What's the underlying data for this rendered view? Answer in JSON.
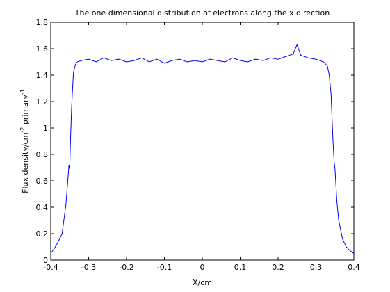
{
  "chart_data": {
    "type": "line",
    "title": "The one dimensional distribution of electrons along the x direction",
    "xlabel": "X/cm",
    "ylabel": {
      "base": "Flux density/cm",
      "sup1": "-2",
      "mid": " primary",
      "sup2": "-1"
    },
    "xlim": [
      -0.4,
      0.4
    ],
    "ylim": [
      0,
      1.8
    ],
    "xticks": [
      -0.4,
      -0.3,
      -0.2,
      -0.1,
      0,
      0.1,
      0.2,
      0.3,
      0.4
    ],
    "xtick_labels": [
      "-0.4",
      "-0.3",
      "-0.2",
      "-0.1",
      "0",
      "0.1",
      "0.2",
      "0.3",
      "0.4"
    ],
    "yticks": [
      0,
      0.2,
      0.4,
      0.6,
      0.8,
      1,
      1.2,
      1.4,
      1.6,
      1.8
    ],
    "ytick_labels": [
      "0",
      "0.2",
      "0.4",
      "0.6",
      "0.8",
      "1",
      "1.2",
      "1.4",
      "1.6",
      "1.8"
    ],
    "grid": false,
    "line_color": "#0000ff",
    "series": [
      {
        "x": [
          -0.4,
          -0.39,
          -0.38,
          -0.37,
          -0.36,
          -0.355,
          -0.352,
          -0.35,
          -0.348,
          -0.345,
          -0.342,
          -0.34,
          -0.335,
          -0.33,
          -0.32,
          -0.3,
          -0.28,
          -0.26,
          -0.24,
          -0.22,
          -0.2,
          -0.18,
          -0.16,
          -0.14,
          -0.12,
          -0.1,
          -0.08,
          -0.06,
          -0.04,
          -0.02,
          0,
          0.02,
          0.04,
          0.06,
          0.08,
          0.1,
          0.12,
          0.14,
          0.16,
          0.18,
          0.2,
          0.22,
          0.24,
          0.25,
          0.26,
          0.28,
          0.3,
          0.32,
          0.33,
          0.335,
          0.34,
          0.342,
          0.345,
          0.348,
          0.35,
          0.352,
          0.355,
          0.36,
          0.37,
          0.38,
          0.39,
          0.4
        ],
        "y": [
          0.05,
          0.09,
          0.14,
          0.2,
          0.42,
          0.6,
          0.72,
          0.69,
          0.9,
          1.15,
          1.32,
          1.42,
          1.48,
          1.5,
          1.51,
          1.52,
          1.5,
          1.53,
          1.51,
          1.52,
          1.5,
          1.51,
          1.53,
          1.5,
          1.52,
          1.49,
          1.51,
          1.52,
          1.5,
          1.51,
          1.5,
          1.52,
          1.51,
          1.5,
          1.53,
          1.51,
          1.5,
          1.52,
          1.51,
          1.53,
          1.52,
          1.54,
          1.56,
          1.63,
          1.55,
          1.53,
          1.52,
          1.5,
          1.47,
          1.4,
          1.25,
          1.1,
          0.9,
          0.74,
          0.7,
          0.6,
          0.45,
          0.3,
          0.16,
          0.1,
          0.07,
          0.05
        ]
      }
    ]
  }
}
